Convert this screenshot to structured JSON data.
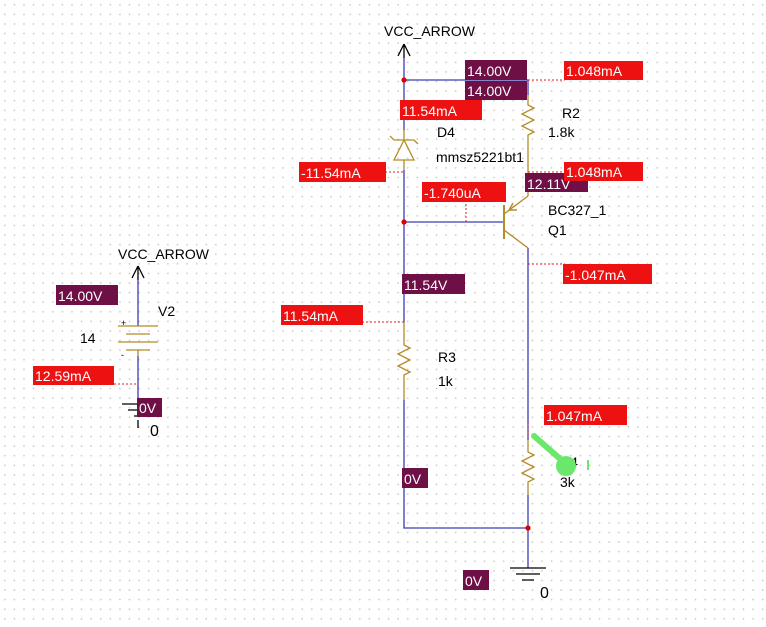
{
  "colors": {
    "wire": "#3c3cb4",
    "component": "#b48c28",
    "current_tag": "#ee1111",
    "voltage_tag": "#6e0f46",
    "probe": "#6be86b",
    "junction": "#dd0000"
  },
  "symbols": {
    "vcc_top": "VCC_ARROW",
    "vcc_left": "VCC_ARROW",
    "gnd_left": "0",
    "gnd_bottom": "0"
  },
  "components": {
    "v2": {
      "ref": "V2",
      "value": "14",
      "plus": "+",
      "minus": "-"
    },
    "d4": {
      "ref": "D4",
      "value": "mmsz5221bt1"
    },
    "r2": {
      "ref": "R2",
      "value": "1.8k"
    },
    "q1": {
      "ref": "Q1",
      "value": "BC327_1"
    },
    "r3": {
      "ref": "R3",
      "value": "1k"
    },
    "r4": {
      "ref": "R4",
      "value": "3k"
    }
  },
  "voltages": {
    "v2_top": "14.00V",
    "v2_gnd": "0V",
    "vcc_node_a": "14.00V",
    "vcc_node_b": "14.00V",
    "emitter": "12.11V",
    "base_node": "11.54V",
    "r3_bottom": "0V",
    "ground": "0V"
  },
  "currents": {
    "r2": "1.048mA",
    "emitter": "1.048mA",
    "d4": "11.54mA",
    "d4_neg": "-11.54mA",
    "base": "-1.740uA",
    "collector": "-1.047mA",
    "r3": "11.54mA",
    "v2": "12.59mA",
    "r4": "1.047mA"
  }
}
